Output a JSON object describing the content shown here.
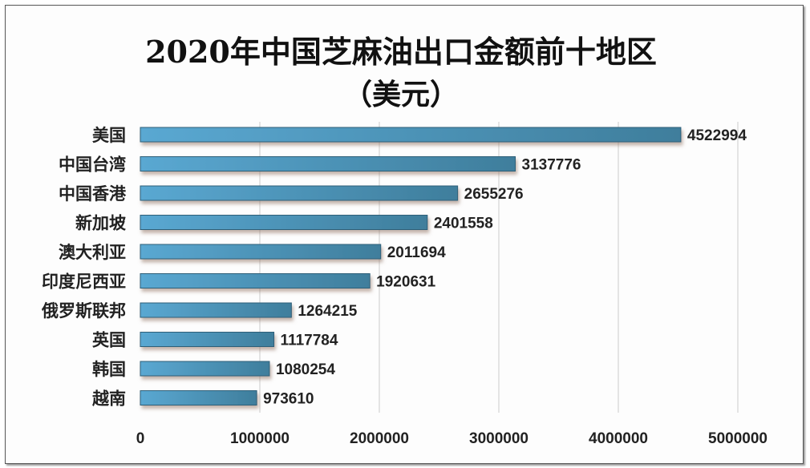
{
  "chart_data": {
    "type": "bar",
    "orientation": "horizontal",
    "title": "2020年中国芝麻油出口金额前十地区",
    "subtitle": "（美元）",
    "categories": [
      "美国",
      "中国台湾",
      "中国香港",
      "新加坡",
      "澳大利亚",
      "印度尼西亚",
      "俄罗斯联邦",
      "英国",
      "韩国",
      "越南"
    ],
    "values": [
      4522994,
      3137776,
      2655276,
      2401558,
      2011694,
      1920631,
      1264215,
      1117784,
      1080254,
      973610
    ],
    "xlim": [
      0,
      5000000
    ],
    "xticks": [
      "0",
      "1000000",
      "2000000",
      "3000000",
      "4000000",
      "5000000"
    ],
    "xlabel": "",
    "ylabel": "",
    "grid": "vertical",
    "legend": "none",
    "colors": {
      "bar_start": "#5aa8d2",
      "bar_end": "#3f7e9c",
      "bar_edge": "#2f5f78",
      "grid": "#cccccc"
    }
  }
}
